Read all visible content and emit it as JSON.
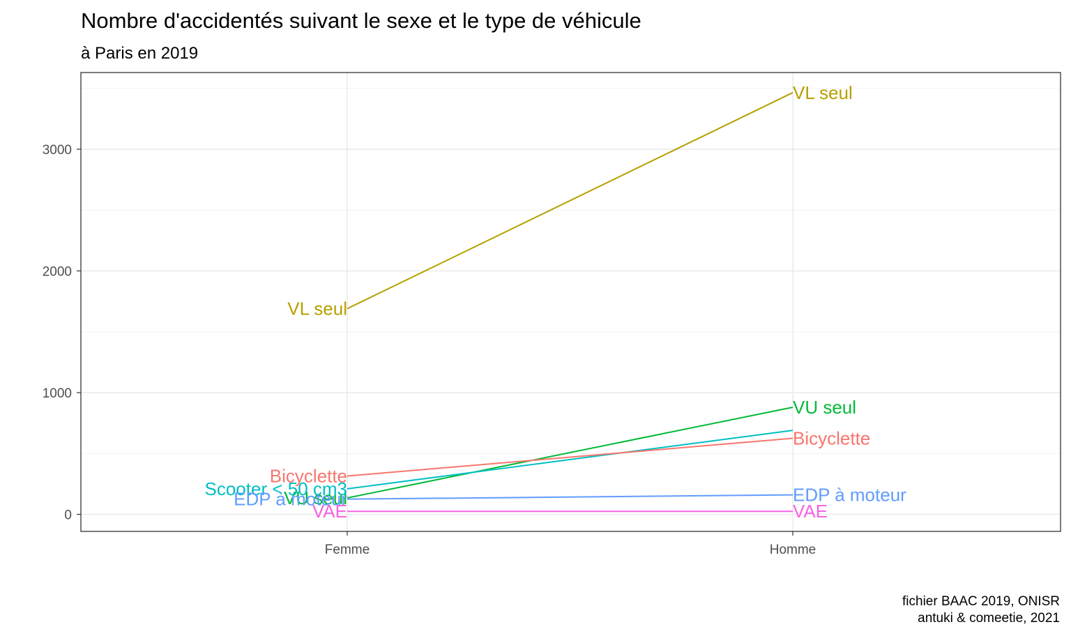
{
  "chart_data": {
    "type": "line",
    "title": "Nombre d'accidentés suivant le sexe et le type de véhicule",
    "subtitle": "à Paris en 2019",
    "caption": [
      "fichier BAAC 2019, ONISR",
      "antuki & comeetie, 2021"
    ],
    "xlabel": "",
    "ylabel": "",
    "categories": [
      "Femme",
      "Homme"
    ],
    "ylim": [
      -140,
      3630
    ],
    "yticks": [
      0,
      1000,
      2000,
      3000
    ],
    "grid": true,
    "legend": "none (direct labels at both ends of each line)",
    "series": [
      {
        "name": "VL seul",
        "color": "#B79F00",
        "values": [
          1690,
          3465
        ]
      },
      {
        "name": "VU seul",
        "color": "#00BA38",
        "values": [
          135,
          880
        ]
      },
      {
        "name": "Scooter < 50 cm3",
        "color": "#00BFC4",
        "values": [
          210,
          690
        ],
        "label_left": true,
        "label_right": false
      },
      {
        "name": "Bicyclette",
        "color": "#F8766D",
        "values": [
          315,
          625
        ]
      },
      {
        "name": "EDP à moteur",
        "color": "#619CFF",
        "values": [
          125,
          160
        ]
      },
      {
        "name": "VAE",
        "color": "#F564E3",
        "values": [
          25,
          25
        ]
      }
    ]
  }
}
